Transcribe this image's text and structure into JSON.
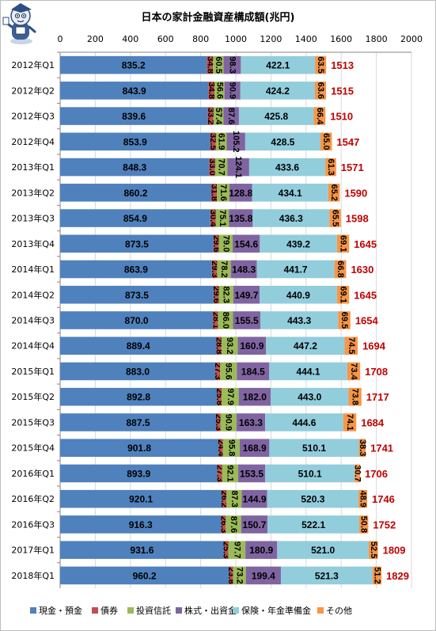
{
  "chart_data": {
    "type": "bar",
    "orientation": "horizontal",
    "stacked": true,
    "title": "日本の家計金融資産構成額(兆円)",
    "xlim": [
      0,
      2000
    ],
    "xticks": [
      "0",
      "200",
      "400",
      "600",
      "800",
      "1000",
      "1200",
      "1400",
      "1600",
      "1800",
      "2000"
    ],
    "grid": true,
    "legend_position": "bottom",
    "categories": [
      "2012年Q1",
      "2012年Q2",
      "2012年Q3",
      "2012年Q4",
      "2013年Q1",
      "2013年Q2",
      "2013年Q3",
      "2013年Q4",
      "2014年Q1",
      "2014年Q2",
      "2014年Q3",
      "2014年Q4",
      "2015年Q1",
      "2015年Q2",
      "2015年Q3",
      "2015年Q4",
      "2016年Q1",
      "2016年Q2",
      "2016年Q3",
      "2017年Q1",
      "2018年Q1"
    ],
    "series": [
      {
        "name": "現金・預金",
        "color": "#4f81bd",
        "label_color": "#000000",
        "values": [
          835.2,
          843.9,
          839.6,
          853.9,
          848.3,
          860.2,
          854.9,
          873.5,
          863.9,
          873.5,
          870.0,
          889.4,
          883.0,
          892.8,
          887.5,
          901.8,
          893.9,
          920.1,
          916.3,
          931.6,
          960.2
        ],
        "labels": [
          "835.2",
          "843.9",
          "839.6",
          "853.9",
          "848.3",
          "860.2",
          "854.9",
          "873.5",
          "863.9",
          "873.5",
          "870.0",
          "889.4",
          "883.0",
          "892.8",
          "887.5",
          "901.8",
          "893.9",
          "920.1",
          "916.3",
          "931.6",
          "960.2"
        ]
      },
      {
        "name": "債券",
        "color": "#c0504d",
        "label_color": "#000000",
        "values": [
          34.8,
          34.8,
          33.2,
          32.5,
          33.0,
          31.8,
          30.4,
          29.6,
          29.3,
          29.6,
          28.1,
          28.8,
          27.3,
          25.8,
          25.3,
          24.4,
          27.3,
          26.2,
          26.3,
          25.3,
          23.8
        ],
        "labels": [
          "34.8",
          "34.8",
          "33.2",
          "32.5",
          "33.0",
          "31.8",
          "30.4",
          "29.6",
          "29.3",
          "29.6",
          "28.1",
          "28.8",
          "27.3",
          "25.8",
          "25.3",
          "24.4",
          "27.3",
          "26.2",
          "26.3",
          "25.3",
          "23.8"
        ]
      },
      {
        "name": "投資信託",
        "color": "#9bbb59",
        "label_color": "#000000",
        "values": [
          60.5,
          56.6,
          57.4,
          61.9,
          70.7,
          71.6,
          75.1,
          79.0,
          78.2,
          82.3,
          86.0,
          93.2,
          95.6,
          97.9,
          90.9,
          95.8,
          92.1,
          87.3,
          87.6,
          97.7,
          73.2
        ],
        "labels": [
          "60.5",
          "56.6",
          "57.4",
          "61.9",
          "70.7",
          "71.6",
          "75.1",
          "79.0",
          "78.2",
          "82.3",
          "86.0",
          "93.2",
          "95.6",
          "97.9",
          "90.9",
          "95.8",
          "92.1",
          "87.3",
          "87.6",
          "97.7",
          "73.2"
        ]
      },
      {
        "name": "株式・出資金",
        "color": "#8064a2",
        "label_color": "#000000",
        "values": [
          98.3,
          90.9,
          87.6,
          105.2,
          124.1,
          128.8,
          135.8,
          154.6,
          148.3,
          149.7,
          155.5,
          160.9,
          184.5,
          182.0,
          163.3,
          168.9,
          153.5,
          144.9,
          150.7,
          180.9,
          199.4
        ],
        "labels": [
          "98.3",
          "90.9",
          "87.6",
          "105.2",
          "124.1",
          "128.8",
          "135.8",
          "154.6",
          "148.3",
          "149.7",
          "155.5",
          "160.9",
          "184.5",
          "182.0",
          "163.3",
          "168.9",
          "153.5",
          "144.9",
          "150.7",
          "180.9",
          "199.4"
        ]
      },
      {
        "name": "保険・年金準備金",
        "color": "#92cddc",
        "label_color": "#000000",
        "values": [
          422.1,
          424.2,
          425.8,
          428.5,
          433.6,
          434.1,
          436.3,
          439.2,
          441.7,
          440.9,
          443.3,
          447.2,
          444.1,
          443.0,
          444.6,
          510.1,
          510.1,
          520.3,
          522.1,
          521.0,
          521.3
        ],
        "labels": [
          "422.1",
          "424.2",
          "425.8",
          "428.5",
          "433.6",
          "434.1",
          "436.3",
          "439.2",
          "441.7",
          "440.9",
          "443.3",
          "447.2",
          "444.1",
          "443.0",
          "444.6",
          "510.1",
          "510.1",
          "520.3",
          "522.1",
          "521.0",
          "521.3"
        ]
      },
      {
        "name": "その他",
        "color": "#f79646",
        "label_color": "#000000",
        "values": [
          63.5,
          63.6,
          66.4,
          65.0,
          61.3,
          65.2,
          65.5,
          69.1,
          66.8,
          69.1,
          69.5,
          74.5,
          73.4,
          73.8,
          74.1,
          38.3,
          30.7,
          48.9,
          50.8,
          52.5,
          51.2
        ],
        "labels": [
          "63.5",
          "63.6",
          "66.4",
          "65.0",
          "61.3",
          "65.2",
          "65.5",
          "69.1",
          "66.8",
          "69.1",
          "69.5",
          "74.5",
          "73.4",
          "73.8",
          "74.1",
          "38.3",
          "30.7",
          "48.9",
          "50.8",
          "52.5",
          "51.2"
        ]
      }
    ],
    "totals": {
      "color": "#c00000",
      "values": [
        1513,
        1515,
        1510,
        1547,
        1571,
        1590,
        1598,
        1645,
        1630,
        1645,
        1654,
        1694,
        1708,
        1717,
        1684,
        1741,
        1706,
        1746,
        1752,
        1809,
        1829
      ],
      "labels": [
        "1513",
        "1515",
        "1510",
        "1547",
        "1571",
        "1590",
        "1598",
        "1645",
        "1630",
        "1645",
        "1654",
        "1694",
        "1708",
        "1717",
        "1684",
        "1741",
        "1706",
        "1746",
        "1752",
        "1809",
        "1829"
      ]
    }
  }
}
